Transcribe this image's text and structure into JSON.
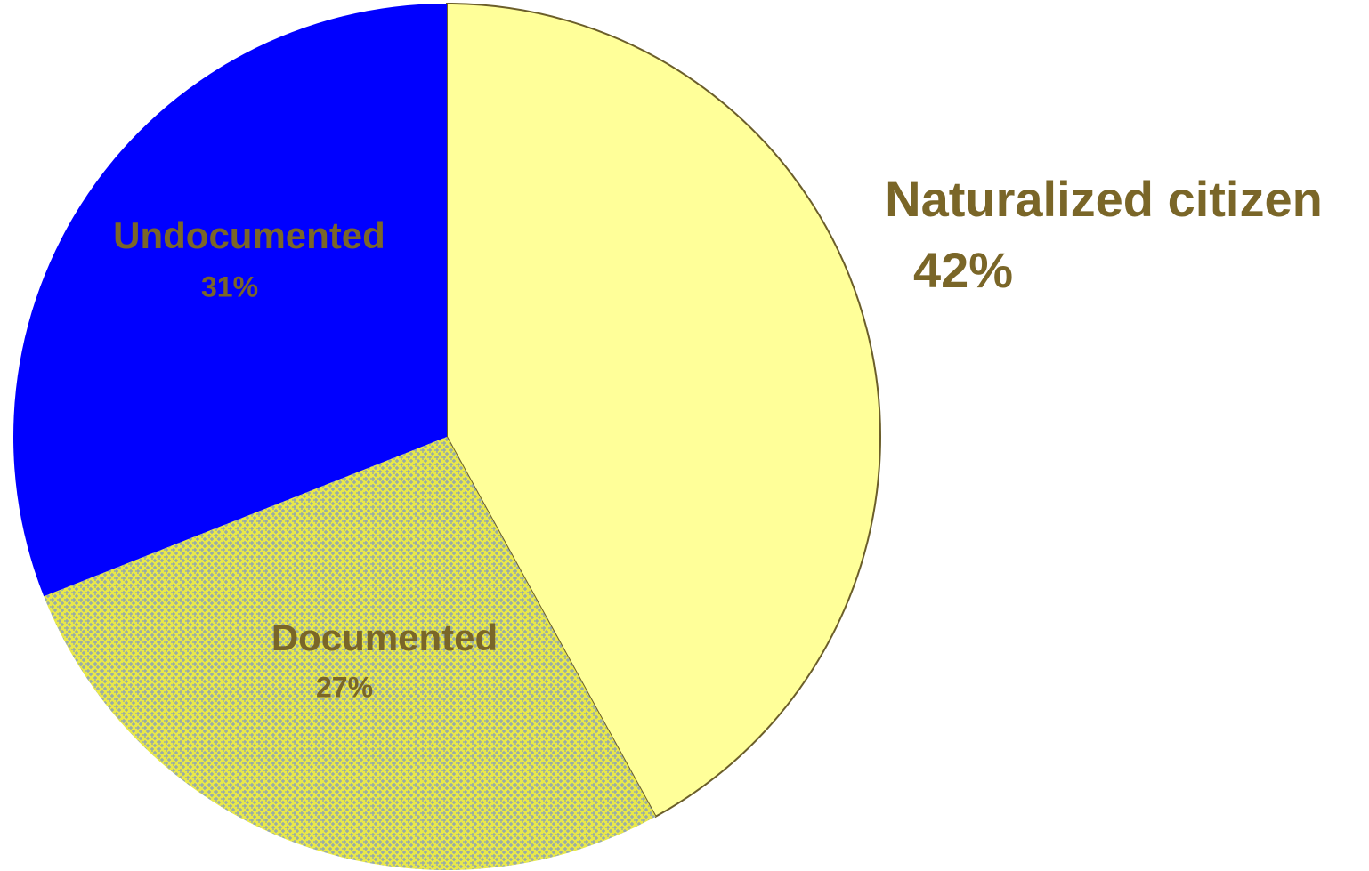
{
  "chart_data": {
    "type": "pie",
    "categories": [
      "Naturalized citizen",
      "Documented",
      "Undocumented"
    ],
    "values": [
      42,
      27,
      31
    ],
    "value_labels": [
      "42%",
      "27%",
      "31%"
    ],
    "colors": [
      "#ffff99",
      "#e8e84a",
      "#0000ff"
    ],
    "patterns": [
      null,
      "crosshatch",
      null
    ],
    "start_angle": 0,
    "direction": "clockwise",
    "label_color": "#7a6628"
  }
}
